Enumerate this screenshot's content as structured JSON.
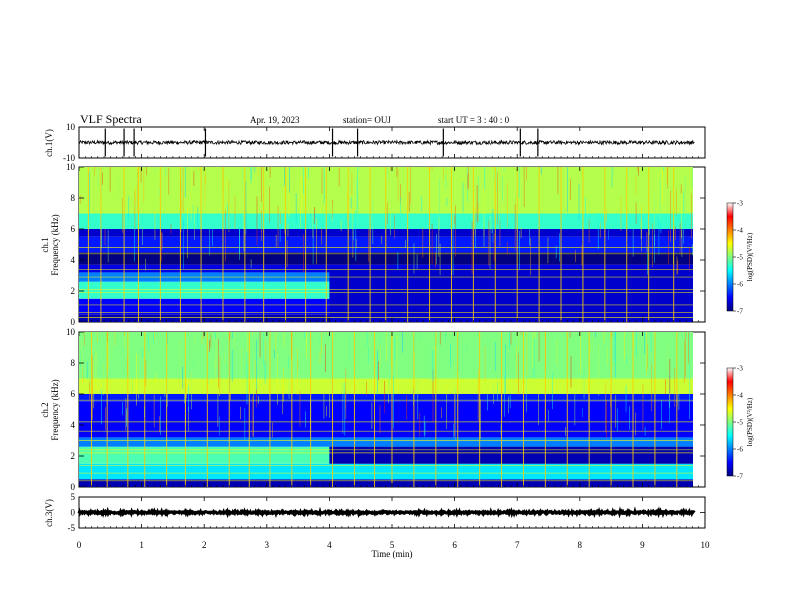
{
  "header": {
    "title": "VLF Spectra",
    "date": "Apr. 19, 2023",
    "station": "station= OUJ",
    "start": "start  UT  =   3  : 40 : 0"
  },
  "chart_data": [
    {
      "type": "line",
      "name": "ch1-waveform",
      "ylabel": "ch.1(V)",
      "ylim": [
        -10,
        10
      ],
      "yticks": [
        10,
        -10
      ],
      "xlim": [
        0,
        10
      ],
      "baseline_level": 0,
      "noise_amplitude": 1.2,
      "spike_times": [
        0.42,
        0.72,
        0.88,
        2.02,
        4.05,
        4.45,
        5.82,
        7.05,
        7.33
      ]
    },
    {
      "type": "heatmap",
      "name": "ch1-spectrogram",
      "ylabel": "ch.1\nFrequency (kHz)",
      "ylim": [
        0,
        10
      ],
      "yticks": [
        0,
        2,
        4,
        6,
        8,
        10
      ],
      "xlim": [
        0,
        9.83
      ],
      "colorbar": {
        "label": "log(PSD)(V²/Hz)",
        "range": [
          -7,
          -3
        ],
        "ticks": [
          -3,
          -4,
          -5,
          -6,
          -7
        ]
      },
      "bands": [
        {
          "f_from": 0,
          "f_to": 0.5,
          "level": -6.8
        },
        {
          "f_from": 0.5,
          "f_to": 1.5,
          "level": -6.5
        },
        {
          "f_from": 1.5,
          "f_to": 2.6,
          "level": -5.3
        },
        {
          "f_from": 2.6,
          "f_to": 3.2,
          "level": -6.0
        },
        {
          "f_from": 3.2,
          "f_to": 3.7,
          "level": -6.6
        },
        {
          "f_from": 3.7,
          "f_to": 4.5,
          "level": -7.0
        },
        {
          "f_from": 4.5,
          "f_to": 5.5,
          "level": -6.4
        },
        {
          "f_from": 5.5,
          "f_to": 6.0,
          "level": -6.7
        },
        {
          "f_from": 6.0,
          "f_to": 7.0,
          "level": -5.3
        },
        {
          "f_from": 7.0,
          "f_to": 10,
          "level": -4.8
        }
      ],
      "change_time": 4.0,
      "low_band_after_change": {
        "f_from": 0,
        "f_to": 3.5,
        "level": -6.7
      },
      "horizontal_lines_khz": [
        0.3,
        0.6,
        1.1,
        1.9,
        2.1,
        2.9,
        3.4,
        4.4,
        4.8
      ],
      "burst_times": [
        0.15,
        0.35,
        0.72,
        0.95,
        1.3,
        1.62,
        1.95,
        2.3,
        2.65,
        2.95,
        3.3,
        3.62,
        3.95,
        4.3,
        4.65,
        4.9,
        5.25,
        5.6,
        5.95,
        6.3,
        6.65,
        7.0,
        7.35,
        7.7,
        8.05,
        8.4,
        8.75,
        9.1,
        9.5
      ]
    },
    {
      "type": "heatmap",
      "name": "ch2-spectrogram",
      "ylabel": "ch.2\nFrequency (kHz)",
      "ylim": [
        0,
        10
      ],
      "yticks": [
        0,
        2,
        4,
        6,
        8,
        10
      ],
      "xlim": [
        0,
        9.83
      ],
      "colorbar": {
        "label": "log(PSD)(V²/Hz)",
        "range": [
          -7,
          -3
        ],
        "ticks": [
          -3,
          -4,
          -5,
          -6,
          -7
        ]
      },
      "bands": [
        {
          "f_from": 0,
          "f_to": 0.5,
          "level": -6.8
        },
        {
          "f_from": 0.5,
          "f_to": 1.5,
          "level": -5.6
        },
        {
          "f_from": 1.5,
          "f_to": 2.6,
          "level": -5.2
        },
        {
          "f_from": 2.6,
          "f_to": 3.2,
          "level": -6.0
        },
        {
          "f_from": 3.2,
          "f_to": 5.5,
          "level": -6.5
        },
        {
          "f_from": 5.5,
          "f_to": 6.0,
          "level": -6.4
        },
        {
          "f_from": 6.0,
          "f_to": 7.0,
          "level": -4.7
        },
        {
          "f_from": 7.0,
          "f_to": 10,
          "level": -5.0
        }
      ],
      "change_time": 4.0,
      "low_band_after_change": {
        "f_from": 1.5,
        "f_to": 2.6,
        "level": -6.8
      },
      "horizontal_lines_khz": [
        0.4,
        0.9,
        1.4,
        2.2,
        2.4,
        3.0,
        3.6,
        4.2,
        5.6
      ],
      "burst_times": [
        0.2,
        0.45,
        0.78,
        1.05,
        1.4,
        1.7,
        2.05,
        2.4,
        2.72,
        3.05,
        3.4,
        3.7,
        4.05,
        4.4,
        4.72,
        5.0,
        5.35,
        5.7,
        6.05,
        6.4,
        6.75,
        7.1,
        7.45,
        7.8,
        8.15,
        8.5,
        8.85,
        9.2,
        9.55
      ]
    },
    {
      "type": "line",
      "name": "ch3-waveform",
      "ylabel": "ch.3(V)",
      "ylim": [
        -5,
        5
      ],
      "yticks": [
        5,
        0,
        -5
      ],
      "xlim": [
        0,
        10
      ],
      "baseline_level": 0,
      "noise_amplitude": 0.3
    }
  ],
  "xaxis": {
    "label": "Time  (min)",
    "ticks": [
      0,
      1,
      2,
      3,
      4,
      5,
      6,
      7,
      8,
      9,
      10
    ]
  }
}
